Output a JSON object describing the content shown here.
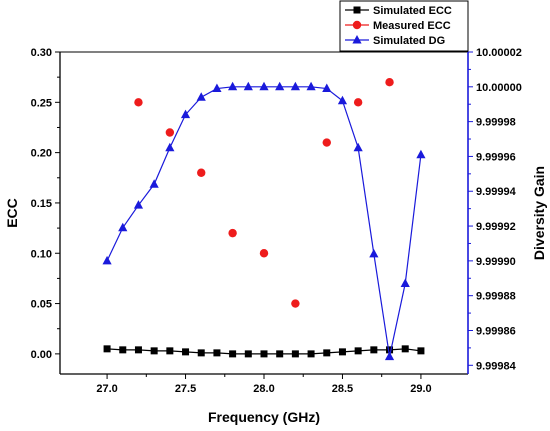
{
  "chart_data": {
    "type": "line",
    "xlabel": "Frequency (GHz)",
    "ylabel": "ECC",
    "y2label": "Diversity Gain",
    "xlim": [
      26.7,
      29.3
    ],
    "ylim": [
      -0.02,
      0.3
    ],
    "y2lim": [
      9.999835,
      10.00002
    ],
    "x_ticks": [
      "27.0",
      "27.5",
      "28.0",
      "28.5",
      "29.0"
    ],
    "y_ticks": [
      "0.00",
      "0.05",
      "0.10",
      "0.15",
      "0.20",
      "0.25",
      "0.30"
    ],
    "y2_ticks": [
      "9.99984",
      "9.99986",
      "9.99988",
      "9.99990",
      "9.99992",
      "9.99994",
      "9.99996",
      "9.99998",
      "10.00000",
      "10.00002"
    ],
    "legend_position": "top-right",
    "series": [
      {
        "name": "Simulated ECC",
        "axis": "left",
        "marker": "square",
        "line": true,
        "color": "#000000",
        "x": [
          27.0,
          27.1,
          27.2,
          27.3,
          27.4,
          27.5,
          27.6,
          27.7,
          27.8,
          27.9,
          28.0,
          28.1,
          28.2,
          28.3,
          28.4,
          28.5,
          28.6,
          28.7,
          28.8,
          28.9,
          29.0
        ],
        "values": [
          0.005,
          0.004,
          0.004,
          0.003,
          0.003,
          0.002,
          0.001,
          0.001,
          0.0,
          0.0,
          0.0,
          0.0,
          0.0,
          0.0,
          0.001,
          0.002,
          0.003,
          0.004,
          0.004,
          0.005,
          0.003
        ]
      },
      {
        "name": "Measured ECC",
        "axis": "left",
        "marker": "circle",
        "line": false,
        "color": "#ee1c1c",
        "x": [
          27.2,
          27.4,
          27.6,
          27.8,
          28.0,
          28.2,
          28.4,
          28.6,
          28.8
        ],
        "values": [
          0.25,
          0.22,
          0.18,
          0.12,
          0.1,
          0.05,
          0.21,
          0.25,
          0.27
        ]
      },
      {
        "name": "Simulated DG",
        "axis": "right",
        "marker": "triangle",
        "line": true,
        "color": "#1a1adb",
        "x": [
          27.0,
          27.1,
          27.2,
          27.3,
          27.4,
          27.5,
          27.6,
          27.7,
          27.8,
          27.9,
          28.0,
          28.1,
          28.2,
          28.3,
          28.4,
          28.5,
          28.6,
          28.7,
          28.8,
          28.9,
          29.0
        ],
        "values": [
          9.9999,
          9.999919,
          9.999932,
          9.999944,
          9.999965,
          9.999984,
          9.999994,
          9.999999,
          10.0,
          10.0,
          10.0,
          10.0,
          10.0,
          10.0,
          9.999999,
          9.999992,
          9.999965,
          9.999904,
          9.999845,
          9.999887,
          9.999961
        ]
      }
    ]
  }
}
